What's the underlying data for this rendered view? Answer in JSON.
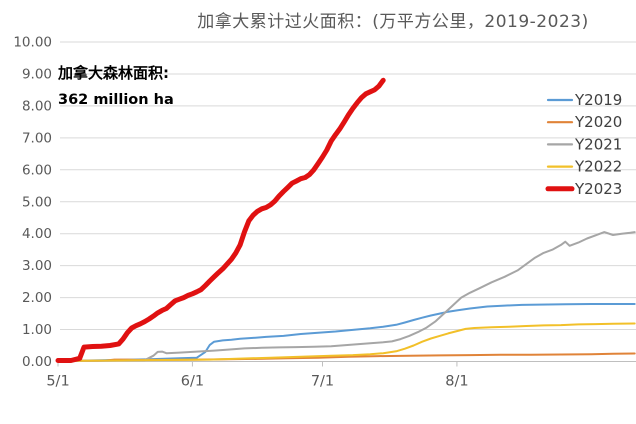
{
  "chart_data": {
    "type": "line",
    "title": "加拿大累计过火面积：(万平方公里，2019-2023)",
    "annotation": {
      "line1": "加拿大森林面积:",
      "line2": "362 million ha"
    },
    "grid": true,
    "legend_position": "right",
    "colors": {
      "grid": "#D9D9D9",
      "axis_line": "#BFBFBF",
      "axis_text": "#595959",
      "legend_text": "#404040",
      "annotation_text": "#000000",
      "background": "#FFFFFF"
    },
    "x_axis": {
      "tick_labels": [
        "5/1",
        "6/1",
        "7/1",
        "8/1"
      ],
      "visible_range": [
        "5/1",
        "9/11"
      ]
    },
    "y_axis": {
      "min": 0,
      "max": 10,
      "step": 1,
      "tick_labels": [
        "0.00",
        "1.00",
        "2.00",
        "3.00",
        "4.00",
        "5.00",
        "6.00",
        "7.00",
        "8.00",
        "9.00",
        "10.00"
      ]
    },
    "series": [
      {
        "name": "Y2019",
        "color": "#5B9BD5",
        "width": 2,
        "emphasis": false,
        "points": [
          [
            "5/1",
            0.02
          ],
          [
            "5/8",
            0.03
          ],
          [
            "5/15",
            0.05
          ],
          [
            "5/22",
            0.07
          ],
          [
            "5/29",
            0.1
          ],
          [
            "6/2",
            0.12
          ],
          [
            "6/4",
            0.3
          ],
          [
            "6/5",
            0.52
          ],
          [
            "6/6",
            0.62
          ],
          [
            "6/8",
            0.66
          ],
          [
            "6/10",
            0.68
          ],
          [
            "6/12",
            0.71
          ],
          [
            "6/15",
            0.74
          ],
          [
            "6/18",
            0.77
          ],
          [
            "6/22",
            0.8
          ],
          [
            "6/26",
            0.86
          ],
          [
            "6/30",
            0.9
          ],
          [
            "7/4",
            0.94
          ],
          [
            "7/8",
            0.99
          ],
          [
            "7/12",
            1.04
          ],
          [
            "7/15",
            1.09
          ],
          [
            "7/18",
            1.15
          ],
          [
            "7/20",
            1.22
          ],
          [
            "7/22",
            1.3
          ],
          [
            "7/24",
            1.37
          ],
          [
            "7/26",
            1.44
          ],
          [
            "7/28",
            1.5
          ],
          [
            "7/30",
            1.56
          ],
          [
            "8/1",
            1.6
          ],
          [
            "8/4",
            1.66
          ],
          [
            "8/8",
            1.72
          ],
          [
            "8/12",
            1.75
          ],
          [
            "8/16",
            1.77
          ],
          [
            "8/20",
            1.78
          ],
          [
            "8/26",
            1.79
          ],
          [
            "9/1",
            1.8
          ],
          [
            "9/11",
            1.8
          ]
        ]
      },
      {
        "name": "Y2020",
        "color": "#E08338",
        "width": 2,
        "emphasis": false,
        "points": [
          [
            "5/1",
            0.01
          ],
          [
            "5/8",
            0.02
          ],
          [
            "5/12",
            0.03
          ],
          [
            "5/14",
            0.06
          ],
          [
            "5/17",
            0.06
          ],
          [
            "5/19",
            0.05
          ],
          [
            "5/26",
            0.05
          ],
          [
            "6/2",
            0.06
          ],
          [
            "6/9",
            0.07
          ],
          [
            "6/16",
            0.08
          ],
          [
            "6/23",
            0.1
          ],
          [
            "6/30",
            0.12
          ],
          [
            "7/7",
            0.15
          ],
          [
            "7/14",
            0.17
          ],
          [
            "7/21",
            0.18
          ],
          [
            "7/28",
            0.19
          ],
          [
            "8/4",
            0.2
          ],
          [
            "8/11",
            0.21
          ],
          [
            "8/18",
            0.21
          ],
          [
            "8/25",
            0.22
          ],
          [
            "9/1",
            0.23
          ],
          [
            "9/6",
            0.24
          ],
          [
            "9/11",
            0.25
          ]
        ]
      },
      {
        "name": "Y2021",
        "color": "#A6A6A6",
        "width": 2,
        "emphasis": false,
        "points": [
          [
            "5/1",
            0.02
          ],
          [
            "5/8",
            0.02
          ],
          [
            "5/15",
            0.03
          ],
          [
            "5/21",
            0.04
          ],
          [
            "5/23",
            0.18
          ],
          [
            "5/24",
            0.3
          ],
          [
            "5/25",
            0.31
          ],
          [
            "5/26",
            0.26
          ],
          [
            "5/29",
            0.28
          ],
          [
            "6/2",
            0.31
          ],
          [
            "6/6",
            0.34
          ],
          [
            "6/10",
            0.38
          ],
          [
            "6/13",
            0.41
          ],
          [
            "6/17",
            0.43
          ],
          [
            "6/21",
            0.44
          ],
          [
            "6/25",
            0.45
          ],
          [
            "6/29",
            0.46
          ],
          [
            "7/3",
            0.48
          ],
          [
            "7/6",
            0.51
          ],
          [
            "7/9",
            0.54
          ],
          [
            "7/12",
            0.57
          ],
          [
            "7/15",
            0.6
          ],
          [
            "7/17",
            0.63
          ],
          [
            "7/19",
            0.7
          ],
          [
            "7/21",
            0.8
          ],
          [
            "7/23",
            0.92
          ],
          [
            "7/25",
            1.06
          ],
          [
            "7/27",
            1.25
          ],
          [
            "7/29",
            1.5
          ],
          [
            "7/31",
            1.75
          ],
          [
            "8/2",
            2.0
          ],
          [
            "8/4",
            2.15
          ],
          [
            "8/6",
            2.28
          ],
          [
            "8/9",
            2.48
          ],
          [
            "8/12",
            2.65
          ],
          [
            "8/15",
            2.85
          ],
          [
            "8/17",
            3.05
          ],
          [
            "8/19",
            3.25
          ],
          [
            "8/21",
            3.4
          ],
          [
            "8/23",
            3.5
          ],
          [
            "8/25",
            3.65
          ],
          [
            "8/26",
            3.75
          ],
          [
            "8/27",
            3.62
          ],
          [
            "8/29",
            3.72
          ],
          [
            "8/31",
            3.85
          ],
          [
            "9/2",
            3.95
          ],
          [
            "9/4",
            4.05
          ],
          [
            "9/6",
            3.96
          ],
          [
            "9/8",
            4.0
          ],
          [
            "9/10",
            4.03
          ],
          [
            "9/11",
            4.05
          ]
        ]
      },
      {
        "name": "Y2022",
        "color": "#F2C029",
        "width": 2,
        "emphasis": false,
        "points": [
          [
            "5/1",
            0.02
          ],
          [
            "5/15",
            0.03
          ],
          [
            "5/29",
            0.05
          ],
          [
            "6/5",
            0.06
          ],
          [
            "6/12",
            0.09
          ],
          [
            "6/19",
            0.12
          ],
          [
            "6/26",
            0.15
          ],
          [
            "7/3",
            0.18
          ],
          [
            "7/8",
            0.2
          ],
          [
            "7/12",
            0.23
          ],
          [
            "7/15",
            0.26
          ],
          [
            "7/18",
            0.32
          ],
          [
            "7/20",
            0.4
          ],
          [
            "7/22",
            0.5
          ],
          [
            "7/24",
            0.62
          ],
          [
            "7/26",
            0.72
          ],
          [
            "7/28",
            0.8
          ],
          [
            "7/30",
            0.88
          ],
          [
            "8/1",
            0.95
          ],
          [
            "8/3",
            1.02
          ],
          [
            "8/5",
            1.05
          ],
          [
            "8/9",
            1.07
          ],
          [
            "8/13",
            1.09
          ],
          [
            "8/17",
            1.11
          ],
          [
            "8/21",
            1.13
          ],
          [
            "8/25",
            1.14
          ],
          [
            "8/29",
            1.16
          ],
          [
            "9/2",
            1.17
          ],
          [
            "9/6",
            1.18
          ],
          [
            "9/11",
            1.19
          ]
        ]
      },
      {
        "name": "Y2023",
        "color": "#E01111",
        "width": 5,
        "emphasis": true,
        "points": [
          [
            "5/1",
            0.03
          ],
          [
            "5/4",
            0.03
          ],
          [
            "5/6",
            0.1
          ],
          [
            "5/7",
            0.45
          ],
          [
            "5/9",
            0.47
          ],
          [
            "5/11",
            0.48
          ],
          [
            "5/13",
            0.5
          ],
          [
            "5/15",
            0.55
          ],
          [
            "5/16",
            0.7
          ],
          [
            "5/17",
            0.9
          ],
          [
            "5/18",
            1.05
          ],
          [
            "5/19",
            1.12
          ],
          [
            "5/20",
            1.18
          ],
          [
            "5/21",
            1.25
          ],
          [
            "5/22",
            1.33
          ],
          [
            "5/23",
            1.42
          ],
          [
            "5/24",
            1.52
          ],
          [
            "5/25",
            1.6
          ],
          [
            "5/26",
            1.66
          ],
          [
            "5/27",
            1.78
          ],
          [
            "5/28",
            1.9
          ],
          [
            "5/29",
            1.95
          ],
          [
            "5/30",
            2.0
          ],
          [
            "5/31",
            2.07
          ],
          [
            "6/1",
            2.12
          ],
          [
            "6/2",
            2.18
          ],
          [
            "6/3",
            2.25
          ],
          [
            "6/4",
            2.38
          ],
          [
            "6/5",
            2.52
          ],
          [
            "6/6",
            2.65
          ],
          [
            "6/7",
            2.78
          ],
          [
            "6/8",
            2.9
          ],
          [
            "6/9",
            3.05
          ],
          [
            "6/10",
            3.2
          ],
          [
            "6/11",
            3.4
          ],
          [
            "6/12",
            3.65
          ],
          [
            "6/13",
            4.05
          ],
          [
            "6/14",
            4.4
          ],
          [
            "6/15",
            4.58
          ],
          [
            "6/16",
            4.7
          ],
          [
            "6/17",
            4.78
          ],
          [
            "6/18",
            4.82
          ],
          [
            "6/19",
            4.9
          ],
          [
            "6/20",
            5.02
          ],
          [
            "6/21",
            5.18
          ],
          [
            "6/22",
            5.32
          ],
          [
            "6/23",
            5.45
          ],
          [
            "6/24",
            5.58
          ],
          [
            "6/25",
            5.65
          ],
          [
            "6/26",
            5.72
          ],
          [
            "6/27",
            5.76
          ],
          [
            "6/28",
            5.85
          ],
          [
            "6/29",
            6.0
          ],
          [
            "6/30",
            6.2
          ],
          [
            "7/1",
            6.4
          ],
          [
            "7/2",
            6.62
          ],
          [
            "7/3",
            6.9
          ],
          [
            "7/4",
            7.1
          ],
          [
            "7/5",
            7.28
          ],
          [
            "7/6",
            7.5
          ],
          [
            "7/7",
            7.72
          ],
          [
            "7/8",
            7.92
          ],
          [
            "7/9",
            8.1
          ],
          [
            "7/10",
            8.26
          ],
          [
            "7/11",
            8.38
          ],
          [
            "7/12",
            8.44
          ],
          [
            "7/13",
            8.5
          ],
          [
            "7/14",
            8.62
          ],
          [
            "7/15",
            8.8
          ]
        ]
      }
    ]
  }
}
